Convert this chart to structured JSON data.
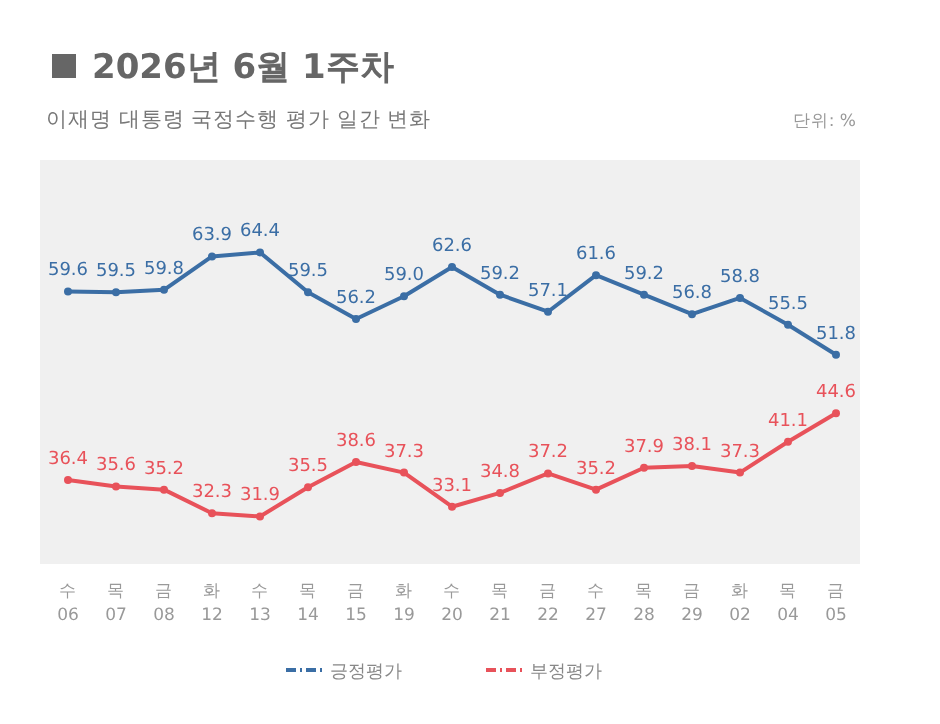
{
  "chart_data": {
    "type": "line",
    "title": "2026년 6월 1주차",
    "subtitle": "이재명 대통령 국정수행 평가 일간 변화",
    "annotations": [
      "단위: %"
    ],
    "categories": [
      "수\n06",
      "목\n07",
      "금\n08",
      "화\n12",
      "수\n13",
      "목\n14",
      "금\n15",
      "화\n19",
      "수\n20",
      "목\n21",
      "금\n22",
      "수\n27",
      "목\n28",
      "금\n29",
      "화\n02",
      "목\n04",
      "금\n05"
    ],
    "series": [
      {
        "name": "긍정평가",
        "color": "#3b6ea5",
        "values": [
          59.6,
          59.5,
          59.8,
          63.9,
          64.4,
          59.5,
          56.2,
          59.0,
          62.6,
          59.2,
          57.1,
          61.6,
          59.2,
          56.8,
          58.8,
          55.5,
          51.8
        ],
        "value_labels": [
          "59.6",
          "59.5",
          "59.8",
          "63.9",
          "64.4",
          "59.5",
          "56.2",
          "59.0",
          "62.6",
          "59.2",
          "57.1",
          "61.6",
          "59.2",
          "56.8",
          "58.8",
          "55.5",
          "51.8"
        ]
      },
      {
        "name": "부정평가",
        "color": "#e8525a",
        "values": [
          36.4,
          35.6,
          35.2,
          32.3,
          31.9,
          35.5,
          38.6,
          37.3,
          33.1,
          34.8,
          37.2,
          35.2,
          37.9,
          38.1,
          37.3,
          41.1,
          44.6
        ],
        "value_labels": [
          "36.4",
          "35.6",
          "35.2",
          "32.3",
          "31.9",
          "35.5",
          "38.6",
          "37.3",
          "33.1",
          "34.8",
          "37.2",
          "35.2",
          "37.9",
          "38.1",
          "37.3",
          "41.1",
          "44.6"
        ]
      }
    ],
    "legend": "bottom",
    "marker": "circle",
    "line_style": "solid"
  }
}
